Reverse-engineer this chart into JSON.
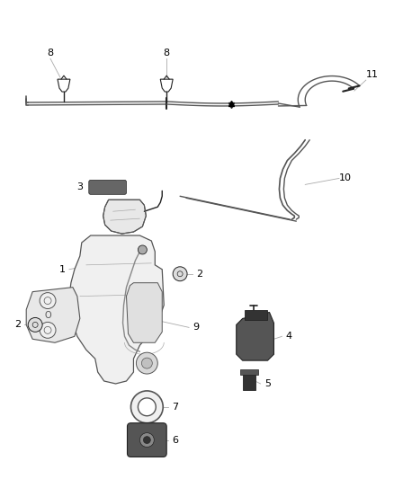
{
  "bg_color": "#ffffff",
  "fig_width": 4.38,
  "fig_height": 5.33,
  "line_color": "#555555",
  "dark_color": "#222222",
  "gray_color": "#888888",
  "light_gray": "#aaaaaa",
  "mid_gray": "#666666"
}
